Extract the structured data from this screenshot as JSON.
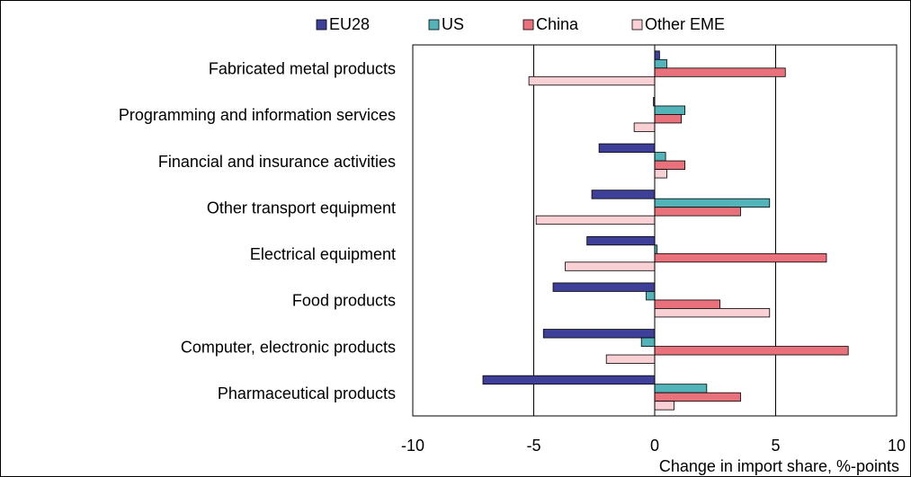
{
  "chart_data": {
    "type": "bar",
    "orientation": "horizontal",
    "x_label": "Change in import share, %-points",
    "categories": [
      "Fabricated metal products",
      "Programming and information services",
      "Financial and insurance activities",
      "Other transport equipment",
      "Electrical equipment",
      "Food products",
      "Computer, electronic products",
      "Pharmaceutical products"
    ],
    "series": [
      {
        "name": "EU28",
        "color": "#3e3f98",
        "values": [
          0.2,
          -0.05,
          -2.3,
          -2.6,
          -2.8,
          -4.2,
          -4.6,
          -7.1
        ]
      },
      {
        "name": "US",
        "color": "#52b3b8",
        "values": [
          0.5,
          1.25,
          0.45,
          4.75,
          0.1,
          -0.35,
          -0.55,
          2.15
        ]
      },
      {
        "name": "China",
        "color": "#e8717b",
        "values": [
          5.4,
          1.1,
          1.25,
          3.55,
          7.1,
          2.7,
          8.0,
          3.55
        ]
      },
      {
        "name": "Other EME",
        "color": "#f9d1d5",
        "values": [
          -5.2,
          -0.85,
          0.5,
          -4.9,
          -3.7,
          4.75,
          -2.0,
          0.8
        ]
      }
    ],
    "xlim": [
      -10,
      10
    ],
    "xticks": [
      -10,
      -5,
      0,
      5,
      10
    ],
    "grid": true,
    "legend": "top"
  }
}
